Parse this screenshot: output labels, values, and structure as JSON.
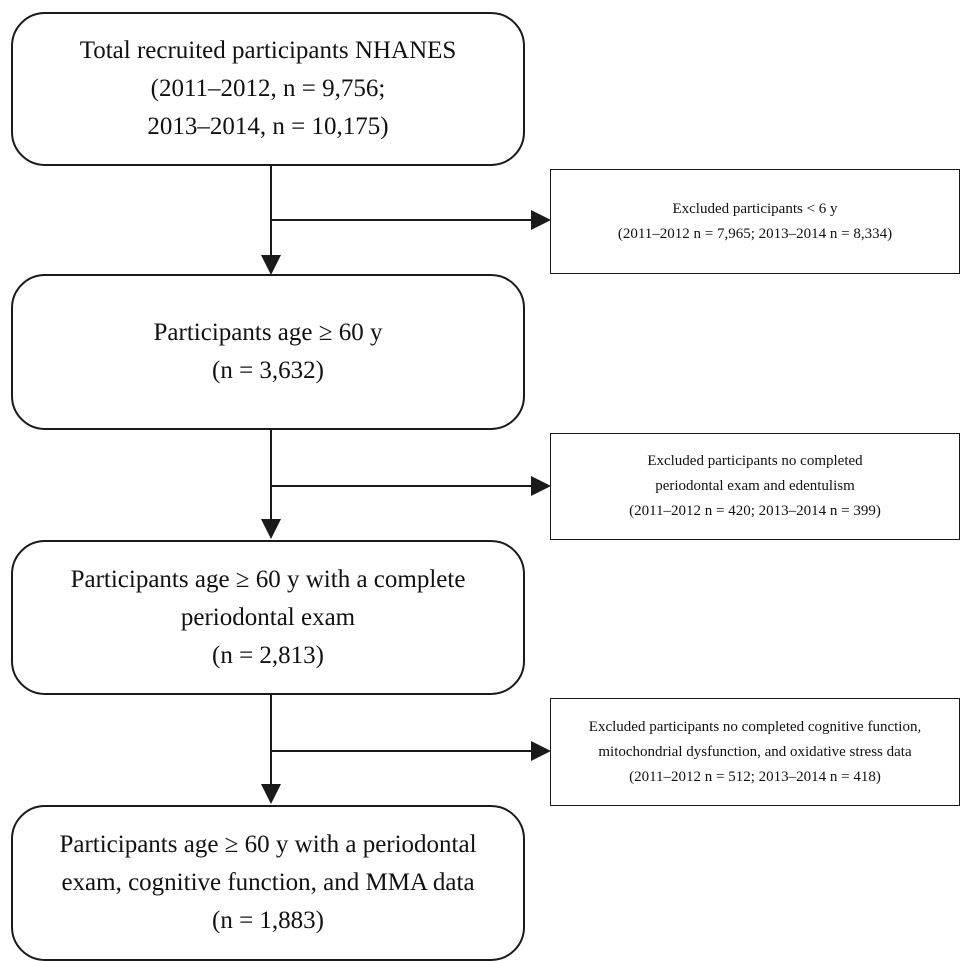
{
  "flowchart": {
    "steps": [
      {
        "lines": [
          "Total recruited participants NHANES",
          "(2011–2012, n = 9,756;",
          "2013–2014, n = 10,175)"
        ]
      },
      {
        "lines": [
          "Participants age ≥ 60 y",
          "(n = 3,632)"
        ]
      },
      {
        "lines": [
          "Participants age ≥ 60 y with a complete",
          "periodontal exam",
          "(n = 2,813)"
        ]
      },
      {
        "lines": [
          "Participants age ≥ 60 y with a periodontal",
          "exam, cognitive function, and MMA data",
          "(n = 1,883)"
        ]
      }
    ],
    "exclusions": [
      {
        "lines": [
          "Excluded participants < 6 y",
          "(2011–2012  n = 7,965;  2013–2014 n = 8,334)"
        ]
      },
      {
        "lines": [
          "Excluded participants no completed",
          "periodontal exam and edentulism",
          "(2011–2012 n = 420;  2013–2014 n = 399)"
        ]
      },
      {
        "lines": [
          "Excluded participants no completed cognitive function,",
          "mitochondrial dysfunction, and oxidative stress data",
          "(2011–2012 n = 512;  2013–2014 n = 418)"
        ]
      }
    ]
  }
}
